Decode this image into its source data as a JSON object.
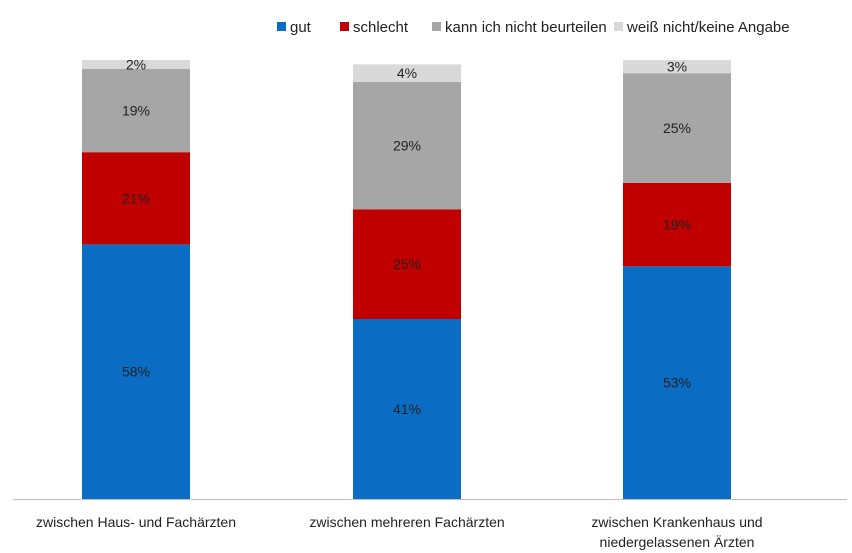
{
  "chart_data": {
    "type": "bar",
    "stacked": true,
    "title": "",
    "xlabel": "",
    "ylabel": "",
    "ylim": [
      0,
      100
    ],
    "grid": false,
    "legend_position": "top-right",
    "categories": [
      "zwischen Haus- und Fachärzten",
      "zwischen mehreren Fachärzten",
      "zwischen Krankenhaus und niedergelassenen Ärzten"
    ],
    "category_lines": [
      [
        "zwischen Haus- und Fachärzten"
      ],
      [
        "zwischen mehreren Fachärzten"
      ],
      [
        "zwischen Krankenhaus und",
        "niedergelassenen Ärzten"
      ]
    ],
    "series": [
      {
        "name": "gut",
        "color": "#0a6cc2",
        "values": [
          58,
          41,
          53
        ],
        "labels": [
          "58%",
          "41%",
          "53%"
        ]
      },
      {
        "name": "schlecht",
        "color": "#c00000",
        "values": [
          21,
          25,
          19
        ],
        "labels": [
          "21%",
          "25%",
          "19%"
        ]
      },
      {
        "name": "kann ich nicht beurteilen",
        "color": "#a6a6a6",
        "values": [
          19,
          29,
          25
        ],
        "labels": [
          "19%",
          "29%",
          "25%"
        ]
      },
      {
        "name": "weiß nicht/keine Angabe",
        "color": "#d9d9d9",
        "values": [
          2,
          4,
          3
        ],
        "labels": [
          "2%",
          "4%",
          "3%"
        ]
      }
    ]
  }
}
